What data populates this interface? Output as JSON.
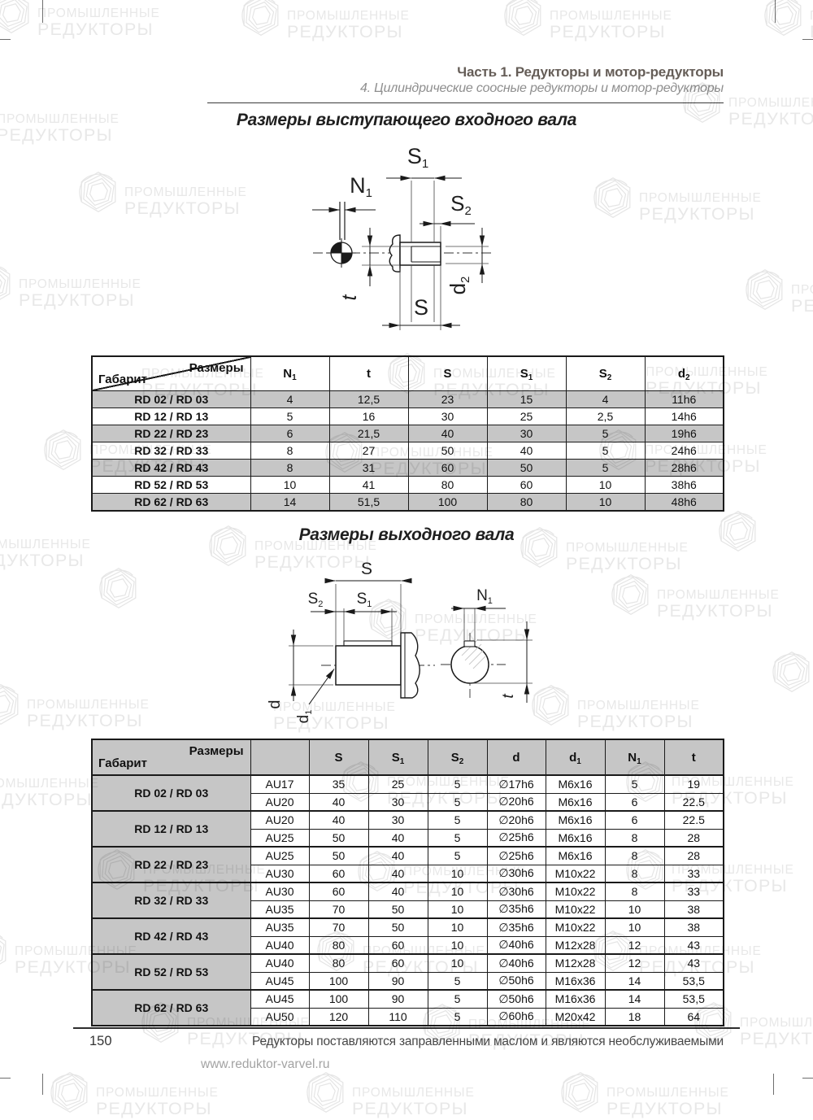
{
  "page_header": {
    "part_title": "Часть 1. Редукторы и мотор-редукторы",
    "chapter_subtitle": "4. Цилиндрические соосные редукторы и мотор-редукторы"
  },
  "sections": {
    "input_shaft_title": "Размеры выступающего входного вала",
    "output_shaft_title": "Размеры выходного вала"
  },
  "watermark": {
    "line1": "ПРОМЫШЛЕННЫЕ",
    "line2": "РЕДУКТОРЫ"
  },
  "drawings": {
    "input": {
      "labels": {
        "n1": {
          "base": "N",
          "sub": "1"
        },
        "s1": {
          "base": "S",
          "sub": "1"
        },
        "s2": {
          "base": "S",
          "sub": "2"
        },
        "s": {
          "base": "S"
        },
        "t": {
          "base": "t"
        },
        "d2": {
          "base": "d",
          "sub": "2"
        }
      }
    },
    "output": {
      "labels": {
        "s": {
          "base": "S"
        },
        "s1": {
          "base": "S",
          "sub": "1"
        },
        "s2": {
          "base": "S",
          "sub": "2"
        },
        "n1": {
          "base": "N",
          "sub": "1"
        },
        "d": {
          "base": "d"
        },
        "d1": {
          "base": "d",
          "sub": "1"
        },
        "t": {
          "base": "t"
        }
      }
    }
  },
  "tables": {
    "input": {
      "corner_top": "Размеры",
      "corner_bottom": "Габарит",
      "columns": [
        {
          "base": "N",
          "sub": "1"
        },
        {
          "base": "t",
          "sub": ""
        },
        {
          "base": "S",
          "sub": ""
        },
        {
          "base": "S",
          "sub": "1"
        },
        {
          "base": "S",
          "sub": "2"
        },
        {
          "base": "d",
          "sub": "2"
        }
      ],
      "rows": [
        {
          "gabarit": "RD 02 / RD 03",
          "values": [
            "4",
            "12,5",
            "23",
            "15",
            "4",
            "11h6"
          ]
        },
        {
          "gabarit": "RD 12 / RD 13",
          "values": [
            "5",
            "16",
            "30",
            "25",
            "2,5",
            "14h6"
          ]
        },
        {
          "gabarit": "RD 22 / RD 23",
          "values": [
            "6",
            "21,5",
            "40",
            "30",
            "5",
            "19h6"
          ]
        },
        {
          "gabarit": "RD 32 / RD 33",
          "values": [
            "8",
            "27",
            "50",
            "40",
            "5",
            "24h6"
          ]
        },
        {
          "gabarit": "RD 42 / RD 43",
          "values": [
            "8",
            "31",
            "60",
            "50",
            "5",
            "28h6"
          ]
        },
        {
          "gabarit": "RD 52 / RD 53",
          "values": [
            "10",
            "41",
            "80",
            "60",
            "10",
            "38h6"
          ]
        },
        {
          "gabarit": "RD 62 / RD 63",
          "values": [
            "14",
            "51,5",
            "100",
            "80",
            "10",
            "48h6"
          ]
        }
      ]
    },
    "output": {
      "corner_top": "Размеры",
      "corner_bottom": "Габарит",
      "columns": [
        {
          "base": "",
          "sub": ""
        },
        {
          "base": "S",
          "sub": ""
        },
        {
          "base": "S",
          "sub": "1"
        },
        {
          "base": "S",
          "sub": "2"
        },
        {
          "base": "d",
          "sub": ""
        },
        {
          "base": "d",
          "sub": "1"
        },
        {
          "base": "N",
          "sub": "1"
        },
        {
          "base": "t",
          "sub": ""
        }
      ],
      "groups": [
        {
          "gabarit": "RD 02 / RD 03",
          "rows": [
            [
              "AU17",
              "35",
              "25",
              "5",
              "∅17h6",
              "M6x16",
              "5",
              "19"
            ],
            [
              "AU20",
              "40",
              "30",
              "5",
              "∅20h6",
              "M6x16",
              "6",
              "22.5"
            ]
          ]
        },
        {
          "gabarit": "RD 12 / RD 13",
          "rows": [
            [
              "AU20",
              "40",
              "30",
              "5",
              "∅20h6",
              "M6x16",
              "6",
              "22.5"
            ],
            [
              "AU25",
              "50",
              "40",
              "5",
              "∅25h6",
              "M6x16",
              "8",
              "28"
            ]
          ]
        },
        {
          "gabarit": "RD 22 / RD 23",
          "rows": [
            [
              "AU25",
              "50",
              "40",
              "5",
              "∅25h6",
              "M6x16",
              "8",
              "28"
            ],
            [
              "AU30",
              "60",
              "40",
              "10",
              "∅30h6",
              "M10x22",
              "8",
              "33"
            ]
          ]
        },
        {
          "gabarit": "RD 32 / RD 33",
          "rows": [
            [
              "AU30",
              "60",
              "40",
              "10",
              "∅30h6",
              "M10x22",
              "8",
              "33"
            ],
            [
              "AU35",
              "70",
              "50",
              "10",
              "∅35h6",
              "M10x22",
              "10",
              "38"
            ]
          ]
        },
        {
          "gabarit": "RD 42 / RD 43",
          "rows": [
            [
              "AU35",
              "70",
              "50",
              "10",
              "∅35h6",
              "M10x22",
              "10",
              "38"
            ],
            [
              "AU40",
              "80",
              "60",
              "10",
              "∅40h6",
              "M12x28",
              "12",
              "43"
            ]
          ]
        },
        {
          "gabarit": "RD 52 / RD 53",
          "rows": [
            [
              "AU40",
              "80",
              "60",
              "10",
              "∅40h6",
              "M12x28",
              "12",
              "43"
            ],
            [
              "AU45",
              "100",
              "90",
              "5",
              "∅50h6",
              "M16x36",
              "14",
              "53,5"
            ]
          ]
        },
        {
          "gabarit": "RD 62 / RD 63",
          "rows": [
            [
              "AU45",
              "100",
              "90",
              "5",
              "∅50h6",
              "M16x36",
              "14",
              "53,5"
            ],
            [
              "AU50",
              "120",
              "110",
              "5",
              "∅60h6",
              "M20x42",
              "18",
              "64"
            ]
          ]
        }
      ]
    }
  },
  "footer": {
    "page_number": "150",
    "note": "Редукторы поставляются заправленными маслом и являются необслуживаемыми",
    "url": "www.reduktor-varvel.ru"
  },
  "colors": {
    "table_gray": "#c6c6c6",
    "header_title": "#655d57",
    "subtitle_gray": "#8e8e8e",
    "watermark_gray": "#e8e8e8",
    "line_black": "#1a1a1a"
  }
}
